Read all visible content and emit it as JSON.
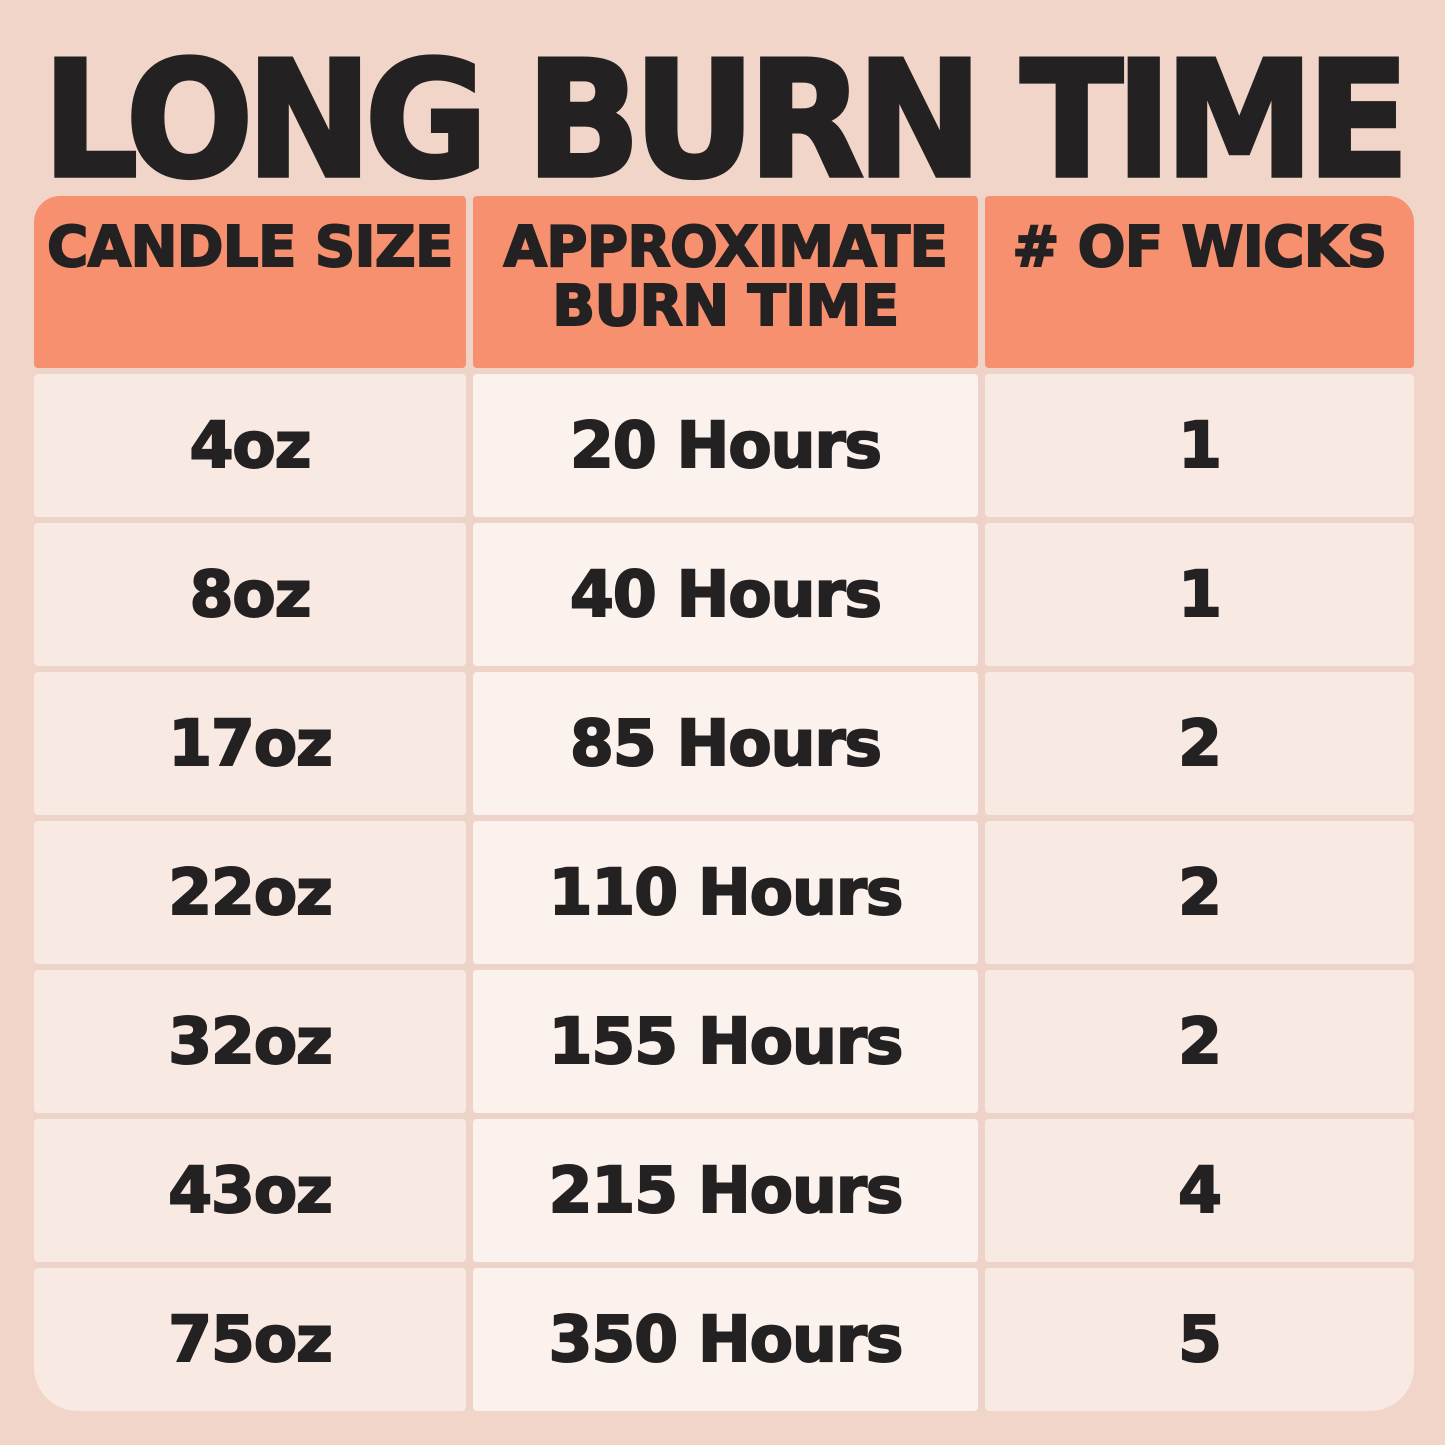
{
  "title": "LONG BURN TIME",
  "table": {
    "header": {
      "candle_size": "CANDLE SIZE",
      "burn_time_line1": "APPROXIMATE",
      "burn_time_line2": "BURN TIME",
      "wicks": "# OF WICKS"
    },
    "rows": [
      {
        "size": "4oz",
        "burn_time": "20 Hours",
        "wicks": "1"
      },
      {
        "size": "8oz",
        "burn_time": "40 Hours",
        "wicks": "1"
      },
      {
        "size": "17oz",
        "burn_time": "85 Hours",
        "wicks": "2"
      },
      {
        "size": "22oz",
        "burn_time": "110 Hours",
        "wicks": "2"
      },
      {
        "size": "32oz",
        "burn_time": "155 Hours",
        "wicks": "2"
      },
      {
        "size": "43oz",
        "burn_time": "215 Hours",
        "wicks": "4"
      },
      {
        "size": "75oz",
        "burn_time": "350 Hours",
        "wicks": "5"
      }
    ]
  },
  "colors": {
    "page_bg": "#f1d5c9",
    "divider": "#eed4c8",
    "header_bg": "#f7906e",
    "cell_bg": "#f8e9e3",
    "cell_bg_middle": "#fcf2ed",
    "text": "#242122"
  },
  "chart_data": {
    "type": "table",
    "title": "LONG BURN TIME",
    "columns": [
      "CANDLE SIZE",
      "APPROXIMATE BURN TIME",
      "# OF WICKS"
    ],
    "rows": [
      [
        "4oz",
        "20 Hours",
        "1"
      ],
      [
        "8oz",
        "40 Hours",
        "1"
      ],
      [
        "17oz",
        "85 Hours",
        "2"
      ],
      [
        "22oz",
        "110 Hours",
        "2"
      ],
      [
        "32oz",
        "155 Hours",
        "2"
      ],
      [
        "43oz",
        "215 Hours",
        "4"
      ],
      [
        "75oz",
        "350 Hours",
        "5"
      ]
    ]
  }
}
